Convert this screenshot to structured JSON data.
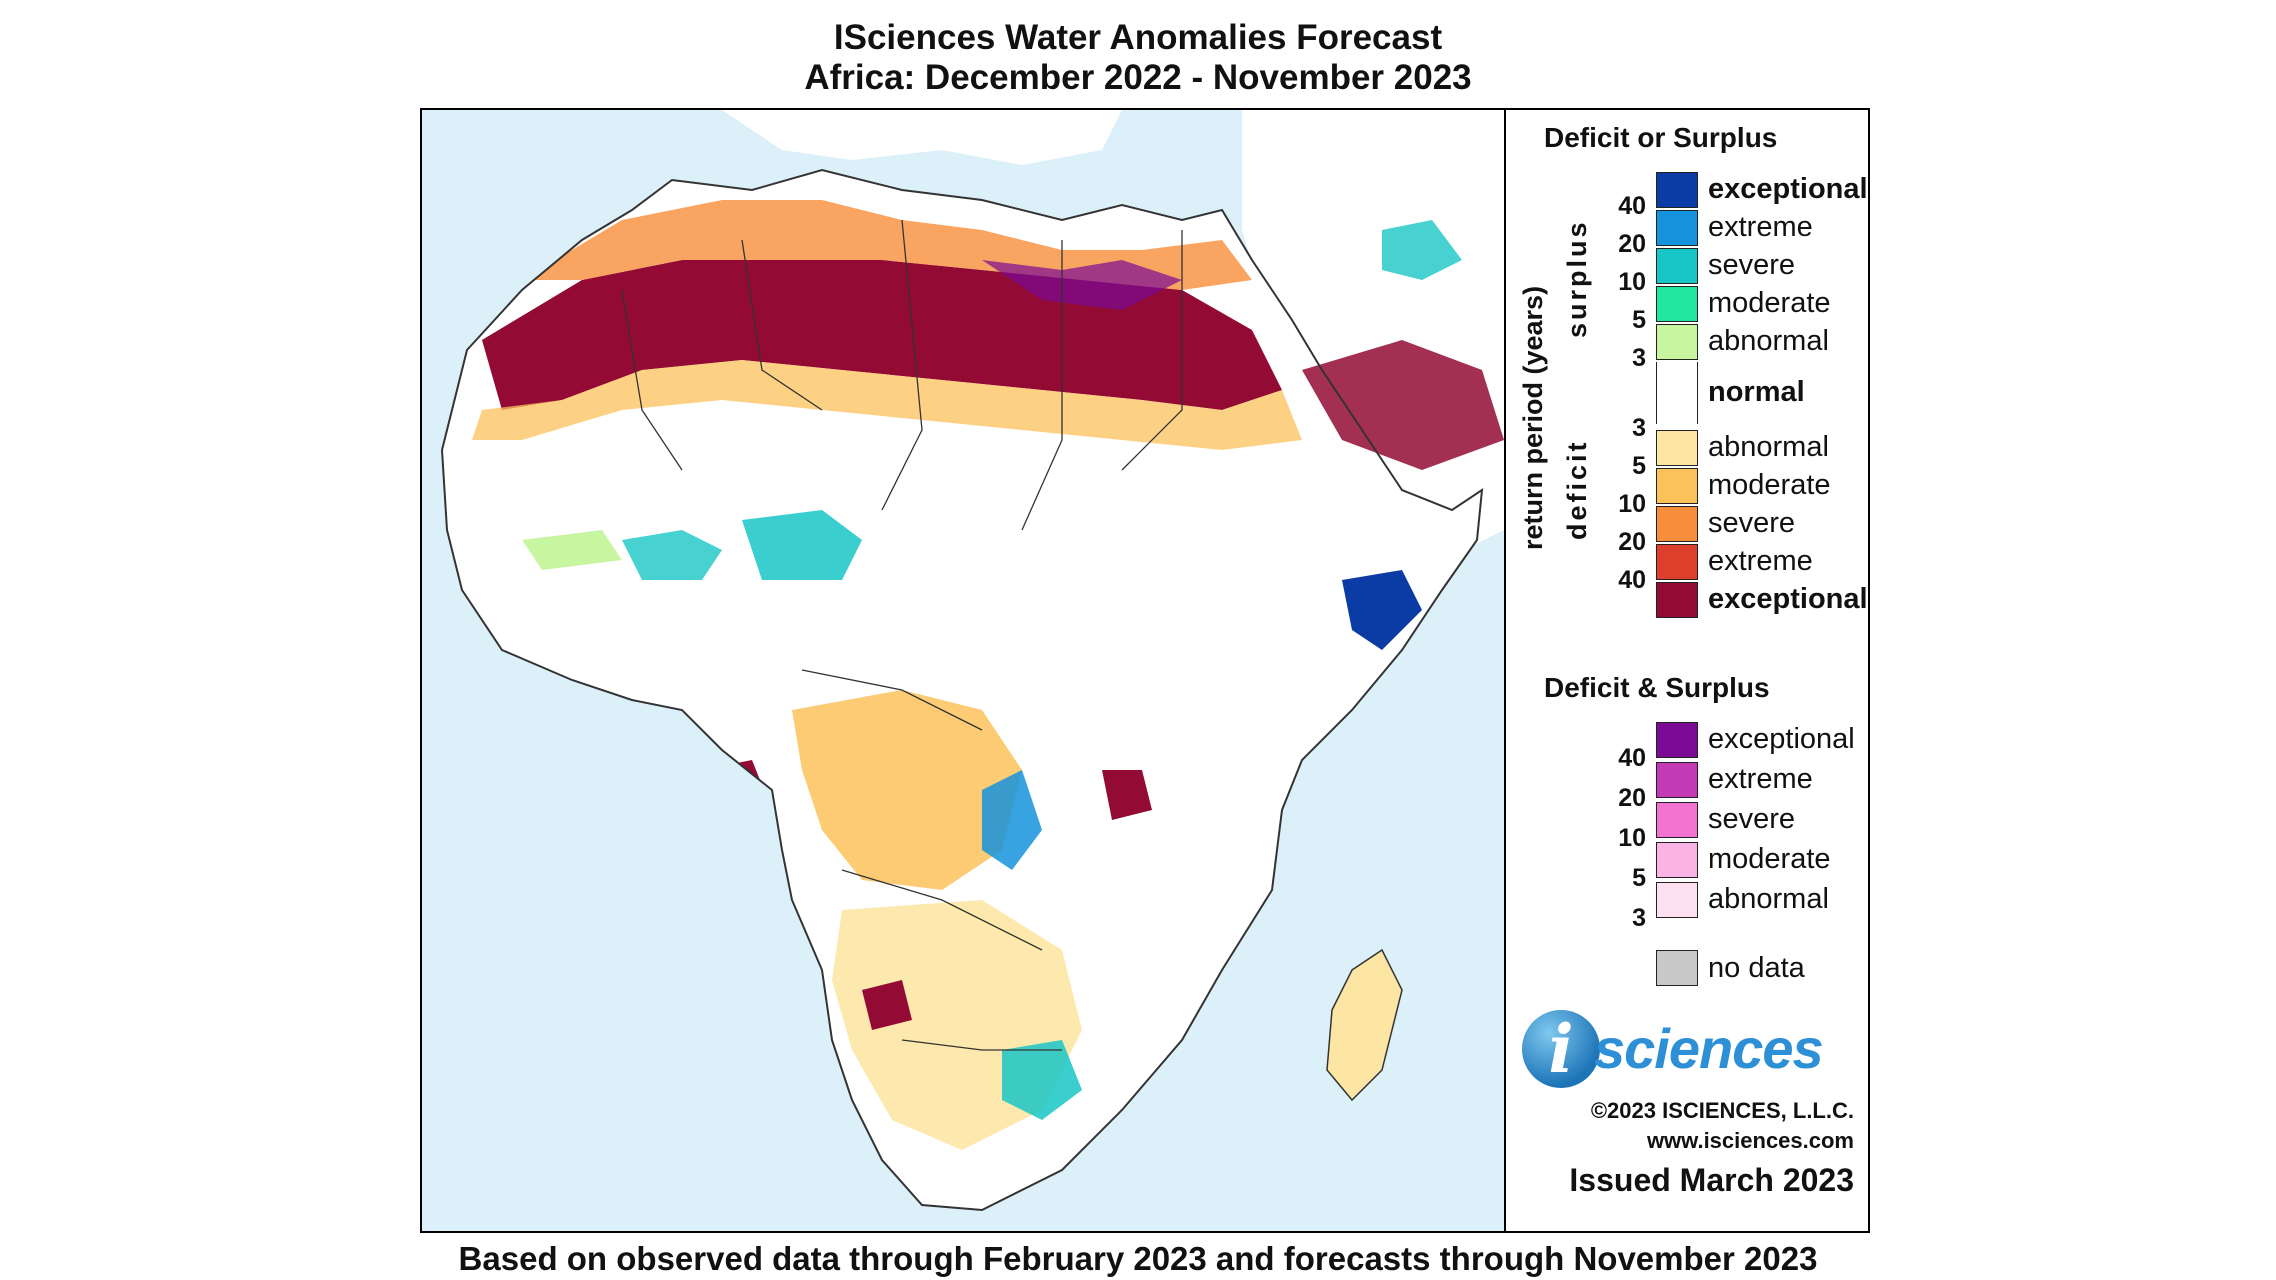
{
  "title_line1": "ISciences Water Anomalies Forecast",
  "title_line2": "Africa: December 2022 - November 2023",
  "footer": "Based on observed data through February 2023 and forecasts through November 2023",
  "legend": {
    "deficit_surplus_title": "Deficit or Surplus",
    "axis_label": "return period (years)",
    "surplus_label": "surplus",
    "deficit_label": "deficit",
    "surplus_numbers": [
      "40",
      "20",
      "10",
      "5",
      "3"
    ],
    "deficit_numbers": [
      "3",
      "5",
      "10",
      "20",
      "40"
    ],
    "surplus_items": [
      {
        "label": "exceptional",
        "color": "#0b3ca6"
      },
      {
        "label": "extreme",
        "color": "#1593dc"
      },
      {
        "label": "severe",
        "color": "#19c6c6"
      },
      {
        "label": "moderate",
        "color": "#20e6a0"
      },
      {
        "label": "abnormal",
        "color": "#c8f5a0"
      }
    ],
    "normal_label": "normal",
    "normal_color": "#ffffff",
    "deficit_items": [
      {
        "label": "abnormal",
        "color": "#fde5a4"
      },
      {
        "label": "moderate",
        "color": "#fcc25a"
      },
      {
        "label": "severe",
        "color": "#f78f3a"
      },
      {
        "label": "extreme",
        "color": "#dc3f2c"
      },
      {
        "label": "exceptional",
        "color": "#930a35"
      }
    ],
    "both_title": "Deficit & Surplus",
    "both_numbers": [
      "40",
      "20",
      "10",
      "5",
      "3"
    ],
    "both_items": [
      {
        "label": "exceptional",
        "color": "#7a0a96"
      },
      {
        "label": "extreme",
        "color": "#c23bb4"
      },
      {
        "label": "severe",
        "color": "#f272cf"
      },
      {
        "label": "moderate",
        "color": "#f9b3e4"
      },
      {
        "label": "abnormal",
        "color": "#fde0f1"
      }
    ],
    "nodata_label": "no data",
    "nodata_color": "#c8c8c8"
  },
  "brand": {
    "logo_letter": "i",
    "logo_text": "sciences",
    "copyright": "©2023 ISCIENCES, L.L.C.",
    "website": "www.isciences.com",
    "issued": "Issued March 2023"
  },
  "map_colors": {
    "ocean": "#dcf0fa",
    "land": "#ffffff",
    "border": "#333333"
  }
}
